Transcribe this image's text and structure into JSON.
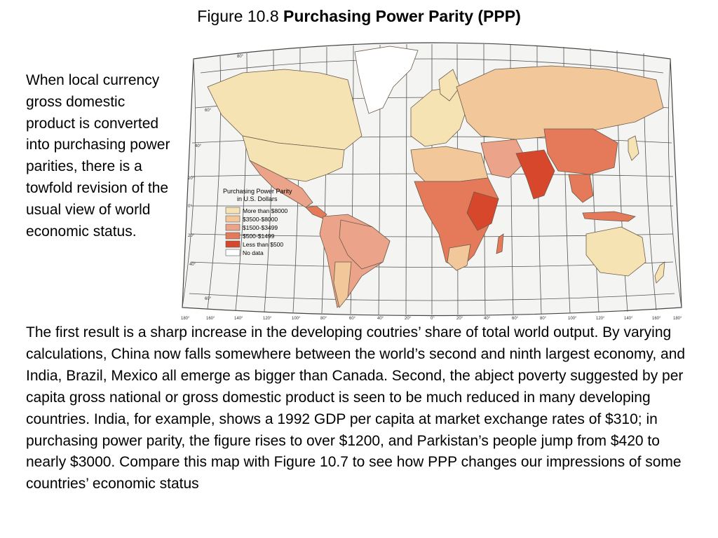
{
  "title": {
    "prefix": "Figure 10.8 ",
    "bold": "Purchasing Power Parity (PPP)"
  },
  "side_text": "When local currency gross domestic product is converted into purchasing power parities, there is a towfold revision of the usual view of world economic status.",
  "body_text": "The first result is a sharp increase in the developing coutries’ share of total world output. By varying calculations, China now falls somewhere between the world’s second and ninth largest economy, and India, Brazil, Mexico all emerge as bigger than Canada. Second, the abject poverty suggested by per capita gross national or gross domestic product is seen to be much reduced in many developing countries. India, for example, shows a 1992 GDP per capita at market exchange rates of $310; in purchasing power parity, the figure rises to over $1200, and Parkistan’s people jump from $420 to nearly $3000. Compare this map with Figure 10.7 to see how PPP changes our impressions of some countries’ economic status",
  "map": {
    "legend": {
      "title_line1": "Purchasing Power Parity",
      "title_line2": "in  U.S. Dollars",
      "items": [
        {
          "label": "More than $8000",
          "color": "#f6e3b4"
        },
        {
          "label": "$3500-$8000",
          "color": "#f2c79a"
        },
        {
          "label": "$1500-$3499",
          "color": "#eba48a"
        },
        {
          "label": "$500-$1499",
          "color": "#e47a5a"
        },
        {
          "label": "Less than $500",
          "color": "#d6472c"
        },
        {
          "label": "No data",
          "color": "#ffffff"
        }
      ]
    },
    "latitude_labels": [
      "80°",
      "60°",
      "40°",
      "20°",
      "0°",
      "20°",
      "40°",
      "60°"
    ],
    "longitude_labels": [
      "180°",
      "160°",
      "140°",
      "120°",
      "100°",
      "80°",
      "60°",
      "40°",
      "20°",
      "0°",
      "20°",
      "40°",
      "60°",
      "80°",
      "100°",
      "120°",
      "140°",
      "160°",
      "180°"
    ],
    "colors": {
      "ocean": "#f4f4f2",
      "graticule": "#555555",
      "border": "#6b5a4a"
    }
  }
}
